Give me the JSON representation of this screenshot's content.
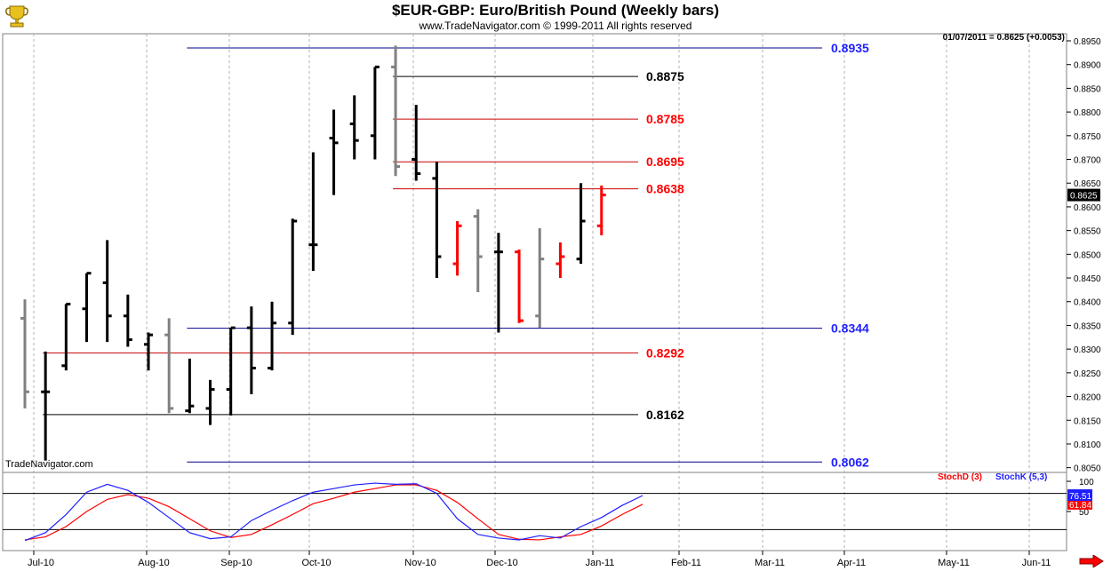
{
  "header": {
    "title": "$EUR-GBP:  Euro/British Pound  (Weekly bars)",
    "subtitle": "www.TradeNavigator.com © 1999-2011 All rights reserved",
    "watermark": "TradeNavigator.com",
    "quote": "01/07/2011 = 0.8625 (+0.0053)"
  },
  "colors": {
    "up": "#000000",
    "down": "#ff0000",
    "flat": "#808080",
    "blue": "#1f1fff",
    "grid": "#b0b0b0"
  },
  "icons": {
    "logo": "trophy-icon",
    "nav": "right-arrow-icon"
  },
  "chart_data": [
    {
      "type": "ohlc",
      "ylim": [
        0.804,
        0.8965
      ],
      "yticks": [
        "0.8950",
        "0.8900",
        "0.8850",
        "0.8800",
        "0.8750",
        "0.8700",
        "0.8650",
        "0.8600",
        "0.8550",
        "0.8500",
        "0.8450",
        "0.8400",
        "0.8350",
        "0.8300",
        "0.8250",
        "0.8200",
        "0.8150",
        "0.8100",
        "0.8050"
      ],
      "xlabels": [
        "Jul-10",
        "Aug-10",
        "Sep-10",
        "Oct-10",
        "Nov-10",
        "Dec-10",
        "Jan-11",
        "Feb-11",
        "Mar-11",
        "Apr-11",
        "May-11",
        "Jun-11"
      ],
      "last_price": "0.8625",
      "bars": [
        {
          "o": 0.8365,
          "h": 0.8405,
          "l": 0.8175,
          "c": 0.821,
          "col": "flat"
        },
        {
          "o": 0.821,
          "h": 0.8295,
          "l": 0.8065,
          "c": 0.821,
          "col": "up"
        },
        {
          "o": 0.8265,
          "h": 0.8395,
          "l": 0.8255,
          "c": 0.8395,
          "col": "up"
        },
        {
          "o": 0.8385,
          "h": 0.846,
          "l": 0.8315,
          "c": 0.846,
          "col": "up"
        },
        {
          "o": 0.844,
          "h": 0.853,
          "l": 0.8315,
          "c": 0.837,
          "col": "up"
        },
        {
          "o": 0.837,
          "h": 0.8415,
          "l": 0.8305,
          "c": 0.832,
          "col": "up"
        },
        {
          "o": 0.831,
          "h": 0.8335,
          "l": 0.8255,
          "c": 0.833,
          "col": "up"
        },
        {
          "o": 0.833,
          "h": 0.8365,
          "l": 0.8165,
          "c": 0.8175,
          "col": "flat"
        },
        {
          "o": 0.817,
          "h": 0.828,
          "l": 0.8165,
          "c": 0.818,
          "col": "up"
        },
        {
          "o": 0.8175,
          "h": 0.8235,
          "l": 0.814,
          "c": 0.8215,
          "col": "up"
        },
        {
          "o": 0.8215,
          "h": 0.8345,
          "l": 0.816,
          "c": 0.8345,
          "col": "up"
        },
        {
          "o": 0.8345,
          "h": 0.839,
          "l": 0.8205,
          "c": 0.826,
          "col": "up"
        },
        {
          "o": 0.826,
          "h": 0.84,
          "l": 0.8255,
          "c": 0.8355,
          "col": "up"
        },
        {
          "o": 0.8355,
          "h": 0.8575,
          "l": 0.833,
          "c": 0.857,
          "col": "up"
        },
        {
          "o": 0.852,
          "h": 0.8715,
          "l": 0.8465,
          "c": 0.852,
          "col": "up"
        },
        {
          "o": 0.8745,
          "h": 0.8805,
          "l": 0.8625,
          "c": 0.8735,
          "col": "up"
        },
        {
          "o": 0.8775,
          "h": 0.8835,
          "l": 0.87,
          "c": 0.874,
          "col": "up"
        },
        {
          "o": 0.875,
          "h": 0.8895,
          "l": 0.87,
          "c": 0.8895,
          "col": "up"
        },
        {
          "o": 0.8895,
          "h": 0.894,
          "l": 0.8665,
          "c": 0.8685,
          "col": "flat"
        },
        {
          "o": 0.87,
          "h": 0.8815,
          "l": 0.8655,
          "c": 0.867,
          "col": "up"
        },
        {
          "o": 0.866,
          "h": 0.8695,
          "l": 0.845,
          "c": 0.8495,
          "col": "up"
        },
        {
          "o": 0.848,
          "h": 0.857,
          "l": 0.8455,
          "c": 0.856,
          "col": "down"
        },
        {
          "o": 0.858,
          "h": 0.8595,
          "l": 0.842,
          "c": 0.8495,
          "col": "flat"
        },
        {
          "o": 0.8505,
          "h": 0.8545,
          "l": 0.8335,
          "c": 0.8505,
          "col": "up"
        },
        {
          "o": 0.8505,
          "h": 0.851,
          "l": 0.8355,
          "c": 0.836,
          "col": "down"
        },
        {
          "o": 0.837,
          "h": 0.8555,
          "l": 0.8345,
          "c": 0.849,
          "col": "flat"
        },
        {
          "o": 0.848,
          "h": 0.8525,
          "l": 0.845,
          "c": 0.8495,
          "col": "down"
        },
        {
          "o": 0.849,
          "h": 0.865,
          "l": 0.848,
          "c": 0.857,
          "col": "up"
        },
        {
          "o": 0.856,
          "h": 0.8645,
          "l": 0.854,
          "c": 0.8625,
          "col": "down"
        }
      ],
      "levels": [
        {
          "value": 0.8935,
          "label": "0.8935",
          "color": "blue",
          "x_start": "bar8"
        },
        {
          "value": 0.8875,
          "label": "0.8875",
          "color": "black",
          "x_start": "bar18"
        },
        {
          "value": 0.8785,
          "label": "0.8785",
          "color": "red",
          "x_start": "bar18"
        },
        {
          "value": 0.8695,
          "label": "0.8695",
          "color": "red",
          "x_start": "bar18"
        },
        {
          "value": 0.8638,
          "label": "0.8638",
          "color": "red",
          "x_start": "bar18"
        },
        {
          "value": 0.8344,
          "label": "0.8344",
          "color": "blue",
          "x_start": "bar8"
        },
        {
          "value": 0.8292,
          "label": "0.8292",
          "color": "red",
          "x_start": "bar1"
        },
        {
          "value": 0.8162,
          "label": "0.8162",
          "color": "black",
          "x_start": "bar1"
        },
        {
          "value": 0.8062,
          "label": "0.8062",
          "color": "blue",
          "x_start": "bar8"
        }
      ]
    },
    {
      "type": "line",
      "ylim": [
        0,
        100
      ],
      "yticks": [
        "100",
        "50"
      ],
      "series": [
        {
          "name": "StochD (3)",
          "color": "#ff0000",
          "last": "61.84",
          "values": [
            3,
            8,
            25,
            50,
            70,
            78,
            72,
            58,
            38,
            18,
            7,
            12,
            28,
            45,
            63,
            72,
            82,
            88,
            94,
            94,
            85,
            65,
            38,
            12,
            4,
            3,
            8,
            12,
            26,
            45,
            62
          ]
        },
        {
          "name": "StochK (5,3)",
          "color": "#1f1fff",
          "last": "76.51",
          "values": [
            2,
            15,
            45,
            82,
            95,
            85,
            65,
            40,
            15,
            5,
            8,
            35,
            52,
            68,
            82,
            88,
            94,
            97,
            95,
            96,
            80,
            38,
            12,
            6,
            3,
            10,
            6,
            25,
            40,
            60,
            76.5
          ]
        }
      ],
      "levels": [
        80,
        20
      ]
    }
  ]
}
